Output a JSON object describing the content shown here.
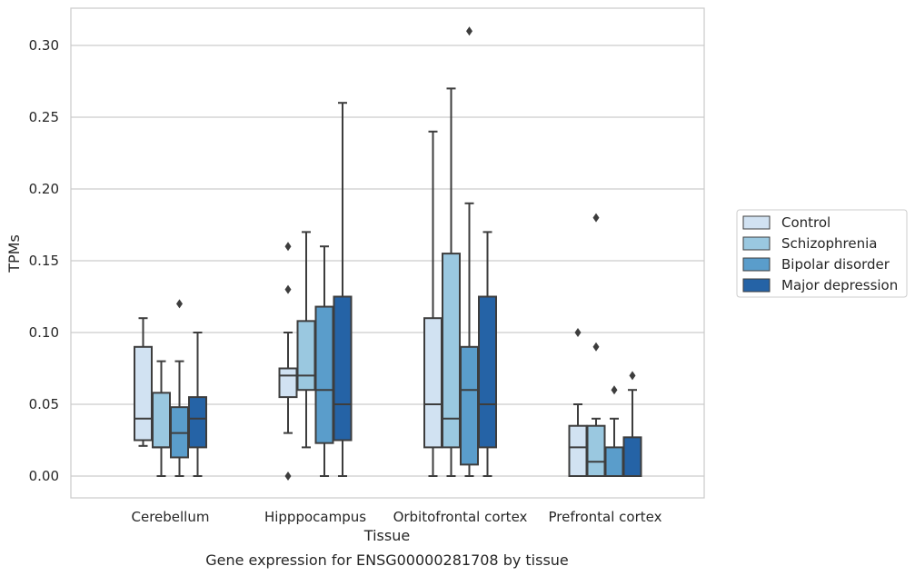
{
  "chart_data": {
    "type": "box",
    "xlabel": "Tissue",
    "ylabel": "TPMs",
    "caption": "Gene expression for ENSG00000281708 by tissue",
    "ylim": [
      -0.015,
      0.327
    ],
    "yticks": [
      "0.00",
      "0.05",
      "0.10",
      "0.15",
      "0.20",
      "0.25",
      "0.30"
    ],
    "ytick_values": [
      0,
      0.05,
      0.1,
      0.15,
      0.2,
      0.25,
      0.3
    ],
    "grid": "horizontal",
    "legend_placement": "right",
    "categories": [
      "Cerebellum",
      "Hipppocampus",
      "Orbitofrontal cortex",
      "Prefrontal cortex"
    ],
    "series": [
      {
        "name": "Control",
        "color": "#d1e2f2",
        "boxes": [
          {
            "whislo": 0.021,
            "q1": 0.025,
            "med": 0.04,
            "q3": 0.09,
            "whishi": 0.11,
            "fliers": []
          },
          {
            "whislo": 0.03,
            "q1": 0.055,
            "med": 0.07,
            "q3": 0.075,
            "whishi": 0.1,
            "fliers": [
              0.16,
              0.13,
              0.0
            ]
          },
          {
            "whislo": 0.0,
            "q1": 0.02,
            "med": 0.05,
            "q3": 0.11,
            "whishi": 0.24,
            "fliers": []
          },
          {
            "whislo": 0.0,
            "q1": 0.0,
            "med": 0.02,
            "q3": 0.035,
            "whishi": 0.05,
            "fliers": [
              0.1
            ]
          }
        ]
      },
      {
        "name": "Schizophrenia",
        "color": "#9ac8e0",
        "boxes": [
          {
            "whislo": 0.0,
            "q1": 0.02,
            "med": 0.02,
            "q3": 0.058,
            "whishi": 0.08,
            "fliers": []
          },
          {
            "whislo": 0.02,
            "q1": 0.06,
            "med": 0.07,
            "q3": 0.108,
            "whishi": 0.17,
            "fliers": []
          },
          {
            "whislo": 0.0,
            "q1": 0.02,
            "med": 0.04,
            "q3": 0.155,
            "whishi": 0.27,
            "fliers": []
          },
          {
            "whislo": 0.0,
            "q1": 0.0,
            "med": 0.01,
            "q3": 0.035,
            "whishi": 0.04,
            "fliers": [
              0.18,
              0.09
            ]
          }
        ]
      },
      {
        "name": "Bipolar disorder",
        "color": "#5a9dcb",
        "boxes": [
          {
            "whislo": 0.0,
            "q1": 0.013,
            "med": 0.03,
            "q3": 0.048,
            "whishi": 0.08,
            "fliers": [
              0.12
            ]
          },
          {
            "whislo": 0.0,
            "q1": 0.023,
            "med": 0.06,
            "q3": 0.118,
            "whishi": 0.16,
            "fliers": []
          },
          {
            "whislo": 0.0,
            "q1": 0.008,
            "med": 0.06,
            "q3": 0.09,
            "whishi": 0.19,
            "fliers": [
              0.31
            ]
          },
          {
            "whislo": 0.0,
            "q1": 0.0,
            "med": 0.0,
            "q3": 0.02,
            "whishi": 0.04,
            "fliers": [
              0.06
            ]
          }
        ]
      },
      {
        "name": "Major depression",
        "color": "#2563a6",
        "boxes": [
          {
            "whislo": 0.0,
            "q1": 0.02,
            "med": 0.04,
            "q3": 0.055,
            "whishi": 0.1,
            "fliers": []
          },
          {
            "whislo": 0.0,
            "q1": 0.025,
            "med": 0.05,
            "q3": 0.125,
            "whishi": 0.26,
            "fliers": []
          },
          {
            "whislo": 0.0,
            "q1": 0.02,
            "med": 0.05,
            "q3": 0.125,
            "whishi": 0.17,
            "fliers": []
          },
          {
            "whislo": 0.0,
            "q1": 0.0,
            "med": 0.0,
            "q3": 0.027,
            "whishi": 0.06,
            "fliers": [
              0.07
            ]
          }
        ]
      }
    ]
  }
}
